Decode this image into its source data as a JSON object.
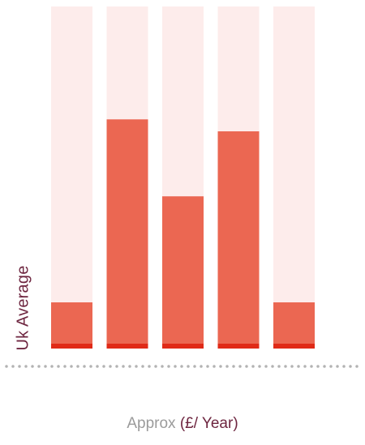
{
  "chart_data": {
    "type": "bar",
    "series": [
      {
        "values": [
          13.5,
          67,
          44.5,
          63.5,
          13.5
        ]
      }
    ],
    "ylim": [
      0,
      100
    ],
    "xlabel": "",
    "ylabel": "Uk Average",
    "grid": false,
    "legend": "none"
  },
  "caption": {
    "prefix": "Approx",
    "unit": "(£/ Year)"
  },
  "colors": {
    "track": "#fdeceb",
    "bar": "#eb6752",
    "base": "#e02a17",
    "axis_dots": "#b3b3b3",
    "label_dark": "#6e2640",
    "label_muted": "#9b9b9b"
  }
}
